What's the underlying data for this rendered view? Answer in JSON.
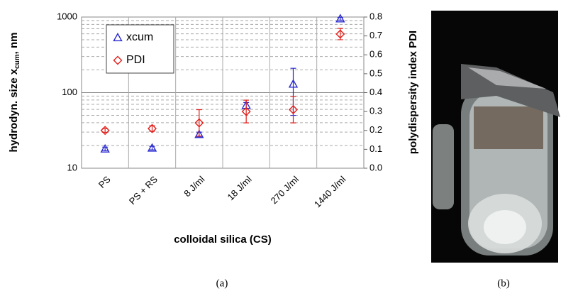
{
  "chart_data": {
    "type": "scatter",
    "categories": [
      "PS",
      "PS + RS",
      "8 J/ml",
      "18 J/ml",
      "270 J/ml",
      "1440 J/ml"
    ],
    "series": [
      {
        "name": "xcum",
        "color": "#2a2ad0",
        "marker": "triangle",
        "values": [
          18,
          18.5,
          28,
          68,
          130,
          950
        ],
        "errors": [
          1,
          1,
          2,
          6,
          80,
          40
        ]
      },
      {
        "name": "PDI",
        "color": "#e0201c",
        "marker": "diamond",
        "axis": "y2",
        "values": [
          0.2,
          0.21,
          0.24,
          0.3,
          0.31,
          0.71
        ],
        "errors": [
          0.01,
          0.015,
          0.07,
          0.06,
          0.07,
          0.03
        ]
      }
    ],
    "xlabel": "colloidal silica (CS)",
    "ylabel": [
      "hydrodyn. size x",
      "cum",
      ", nm"
    ],
    "y2label": "polydispersity index PDI",
    "ylim": [
      10,
      1000
    ],
    "yticks": [
      10,
      100,
      1000
    ],
    "log_y": true,
    "y2lim": [
      0,
      0.8
    ],
    "y2ticks": [
      {
        "value": 0,
        "label": "0.0"
      },
      0.1,
      0.2,
      0.3,
      0.4,
      0.5,
      0.6,
      0.7,
      0.8
    ],
    "grid": true,
    "legend": "upper left",
    "panel_labels": [
      "(a)",
      "(b)"
    ]
  }
}
